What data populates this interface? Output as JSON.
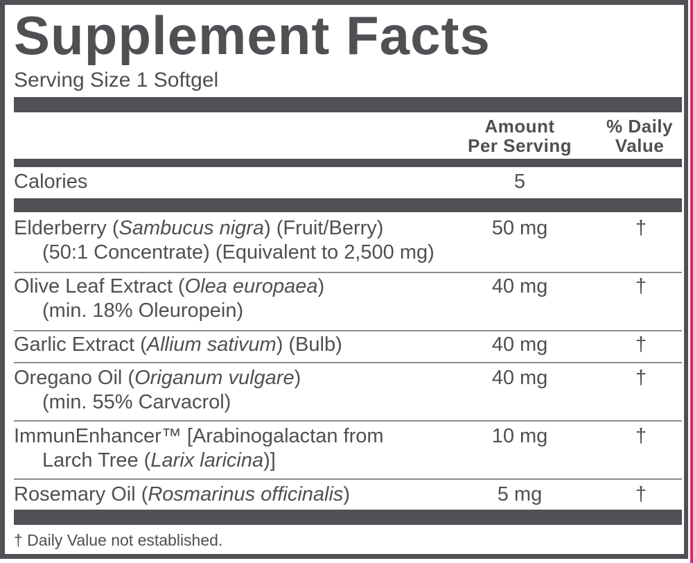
{
  "title": "Supplement Facts",
  "serving_size": "Serving Size 1 Softgel",
  "header": {
    "amount": [
      "Amount",
      "Per Serving"
    ],
    "daily_value": [
      "% Daily",
      "Value"
    ]
  },
  "calories": {
    "label": "Calories",
    "amount": "5"
  },
  "rows": [
    {
      "line1": [
        {
          "t": "Elderberry ("
        },
        {
          "t": "Sambucus nigra",
          "i": true
        },
        {
          "t": ") (Fruit/Berry)"
        }
      ],
      "line2": [
        {
          "t": "(50:1 Concentrate) (Equivalent to 2,500 mg)"
        }
      ],
      "amount": "50 mg",
      "dv": "†"
    },
    {
      "line1": [
        {
          "t": "Olive Leaf Extract ("
        },
        {
          "t": "Olea europaea",
          "i": true
        },
        {
          "t": ")"
        }
      ],
      "line2": [
        {
          "t": "(min. 18% Oleuropein)"
        }
      ],
      "amount": "40 mg",
      "dv": "†"
    },
    {
      "line1": [
        {
          "t": "Garlic Extract ("
        },
        {
          "t": "Allium sativum",
          "i": true
        },
        {
          "t": ") (Bulb)"
        }
      ],
      "amount": "40 mg",
      "dv": "†"
    },
    {
      "line1": [
        {
          "t": "Oregano Oil ("
        },
        {
          "t": "Origanum vulgare",
          "i": true
        },
        {
          "t": ")"
        }
      ],
      "line2": [
        {
          "t": "(min. 55% Carvacrol)"
        }
      ],
      "amount": "40 mg",
      "dv": "†"
    },
    {
      "line1": [
        {
          "t": "ImmunEnhancer™ [Arabinogalactan from"
        }
      ],
      "line2": [
        {
          "t": "Larch Tree ("
        },
        {
          "t": "Larix laricina",
          "i": true
        },
        {
          "t": ")]"
        }
      ],
      "amount": "10 mg",
      "dv": "†"
    },
    {
      "line1": [
        {
          "t": "Rosemary Oil ("
        },
        {
          "t": "Rosmarinus officinalis",
          "i": true
        },
        {
          "t": ")"
        }
      ],
      "amount": "5 mg",
      "dv": "†"
    }
  ],
  "footnote": "† Daily Value not established.",
  "colors": {
    "ink": "#505055",
    "accent_edge": "#d8287a"
  }
}
